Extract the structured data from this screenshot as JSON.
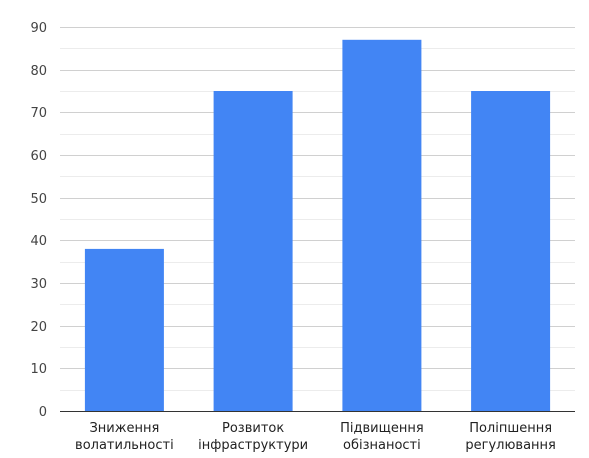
{
  "chart_data": {
    "type": "bar",
    "categories": [
      [
        "Зниження",
        "волатильності"
      ],
      [
        "Розвиток",
        "інфраструктури"
      ],
      [
        "Підвищення",
        "обізнаності"
      ],
      [
        "Поліпшення",
        "регулювання"
      ]
    ],
    "values": [
      38,
      75,
      87,
      75
    ],
    "title": "",
    "xlabel": "",
    "ylabel": "",
    "ylim": [
      0,
      90
    ],
    "yticks": [
      0,
      10,
      20,
      30,
      40,
      50,
      60,
      70,
      80,
      90
    ],
    "grid": true,
    "minor_grid": true,
    "legend": "none",
    "colors": {
      "bar": "#4285F4",
      "major_grid": "#d0d0d0",
      "minor_grid": "#ececec",
      "axis": "#333333"
    }
  }
}
